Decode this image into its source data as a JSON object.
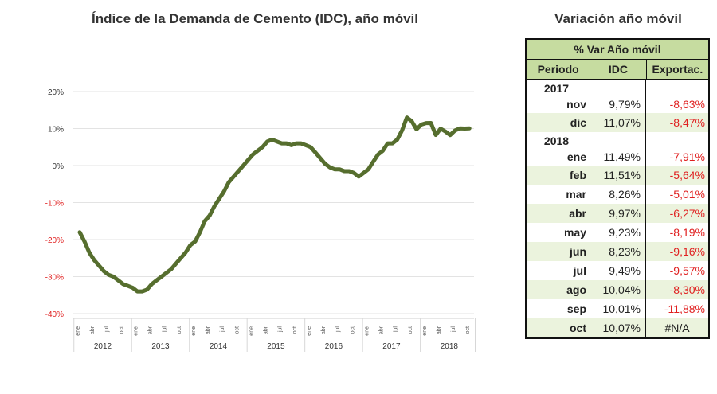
{
  "chart_title": "Índice de la Demanda de Cemento (IDC), año móvil",
  "table_title": "Variación año móvil",
  "table": {
    "caption": "% Var Año móvil",
    "headers": [
      "Periodo",
      "IDC",
      "Exportac."
    ],
    "rows": [
      {
        "year": "2017",
        "month": "nov",
        "idc": "9,79%",
        "export": "-8,63%"
      },
      {
        "month": "dic",
        "idc": "11,07%",
        "export": "-8,47%"
      },
      {
        "year": "2018",
        "month": "ene",
        "idc": "11,49%",
        "export": "-7,91%"
      },
      {
        "month": "feb",
        "idc": "11,51%",
        "export": "-5,64%"
      },
      {
        "month": "mar",
        "idc": "8,26%",
        "export": "-5,01%"
      },
      {
        "month": "abr",
        "idc": "9,97%",
        "export": "-6,27%"
      },
      {
        "month": "may",
        "idc": "9,23%",
        "export": "-8,19%"
      },
      {
        "month": "jun",
        "idc": "8,23%",
        "export": "-9,16%"
      },
      {
        "month": "jul",
        "idc": "9,49%",
        "export": "-9,57%"
      },
      {
        "month": "ago",
        "idc": "10,04%",
        "export": "-8,30%"
      },
      {
        "month": "sep",
        "idc": "10,01%",
        "export": "-11,88%"
      },
      {
        "month": "oct",
        "idc": "10,07%",
        "export": "#N/A"
      }
    ]
  },
  "colors": {
    "line": "#566e2e",
    "negative": "#e02020",
    "header_bg": "#c6dca0",
    "alt_row": "#ebf3dd"
  },
  "chart_data": {
    "type": "line",
    "title": "Índice de la Demanda de Cemento (IDC), año móvil",
    "ylim": [
      -40,
      20
    ],
    "y_ticks": [
      "20%",
      "10%",
      "0%",
      "-10%",
      "-20%",
      "-30%",
      "-40%"
    ],
    "y_tick_values": [
      20,
      10,
      0,
      -10,
      -20,
      -30,
      -40
    ],
    "years": [
      "2012",
      "2013",
      "2014",
      "2015",
      "2016",
      "2017",
      "2018"
    ],
    "month_ticks": [
      "ene",
      "abr",
      "jul",
      "oct"
    ],
    "grid": true,
    "series": [
      {
        "values": [
          -18,
          -20.5,
          -23.5,
          -25.5,
          -27,
          -28.5,
          -29.5,
          -30,
          -31,
          -32,
          -32.5,
          -33,
          -34,
          -34,
          -33.5,
          -32,
          -31,
          -30,
          -29,
          -28,
          -26.5,
          -25,
          -23.5,
          -21.5,
          -20.5,
          -18,
          -15,
          -13.5,
          -11,
          -9,
          -7,
          -4.5,
          -3,
          -1.5,
          0,
          1.5,
          3,
          4,
          5,
          6.5,
          7,
          6.5,
          6,
          6,
          5.5,
          6,
          6,
          5.5,
          5,
          3.5,
          2,
          0.5,
          -0.5,
          -1,
          -1,
          -1.5,
          -1.5,
          -2,
          -3,
          -2,
          -1,
          1,
          3,
          4,
          6,
          6,
          7,
          9.5,
          13,
          12,
          9.79,
          11.07,
          11.49,
          11.51,
          8.26,
          9.97,
          9.23,
          8.23,
          9.49,
          10.04,
          10.01,
          10.07
        ]
      }
    ]
  }
}
